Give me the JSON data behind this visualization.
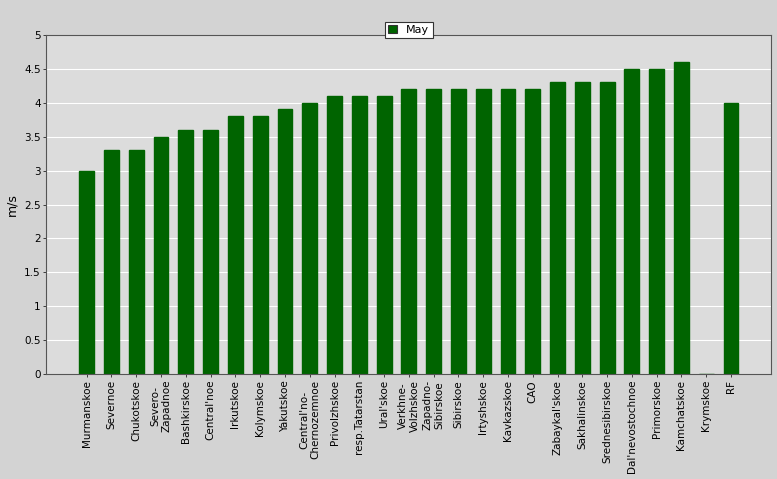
{
  "categories": [
    "Murmanskoe",
    "Severnoe",
    "Chukotskoe",
    "Severo-\nZapadnoe",
    "Bashkirskoe",
    "Central'noe",
    "Irkutskoe",
    "Kolymskoe",
    "Yakutskoe",
    "Central'no-\nChernozemnoe",
    "Privolzhskoe",
    "resp.Tatarstan",
    "Ural'skoe",
    "Verkhne-\nVolzhskoe",
    "Zapadno-\nSibirskoe",
    "Sibirskoe",
    "Irtyshskoe",
    "Kavkazskoe",
    "CAO",
    "Zabaykal'skoe",
    "Sakhalinskoe",
    "Srednesibirskoe",
    "Dal'nevostochnoe",
    "Primorskoe",
    "Kamchatskoe",
    "Krymskoe",
    "RF"
  ],
  "values": [
    3.0,
    3.3,
    3.3,
    3.5,
    3.6,
    3.6,
    3.8,
    3.8,
    3.9,
    4.0,
    4.1,
    4.1,
    4.1,
    4.2,
    4.2,
    4.2,
    4.2,
    4.2,
    4.2,
    4.3,
    4.3,
    4.3,
    4.5,
    4.5,
    4.6,
    0.0,
    4.0
  ],
  "bar_color": "#006400",
  "ylabel": "m/s",
  "ylim": [
    0,
    5
  ],
  "yticks": [
    0,
    0.5,
    1.0,
    1.5,
    2.0,
    2.5,
    3.0,
    3.5,
    4.0,
    4.5,
    5.0
  ],
  "ytick_labels": [
    "0",
    "0.5",
    "1",
    "1.5",
    "2",
    "2.5",
    "3",
    "3.5",
    "4",
    "4.5",
    "5"
  ],
  "legend_label": "May",
  "legend_color": "#006400",
  "fig_bg_color": "#d3d3d3",
  "axes_bg_color": "#dcdcdc",
  "tick_fontsize": 7.5,
  "ylabel_fontsize": 9,
  "legend_fontsize": 8
}
